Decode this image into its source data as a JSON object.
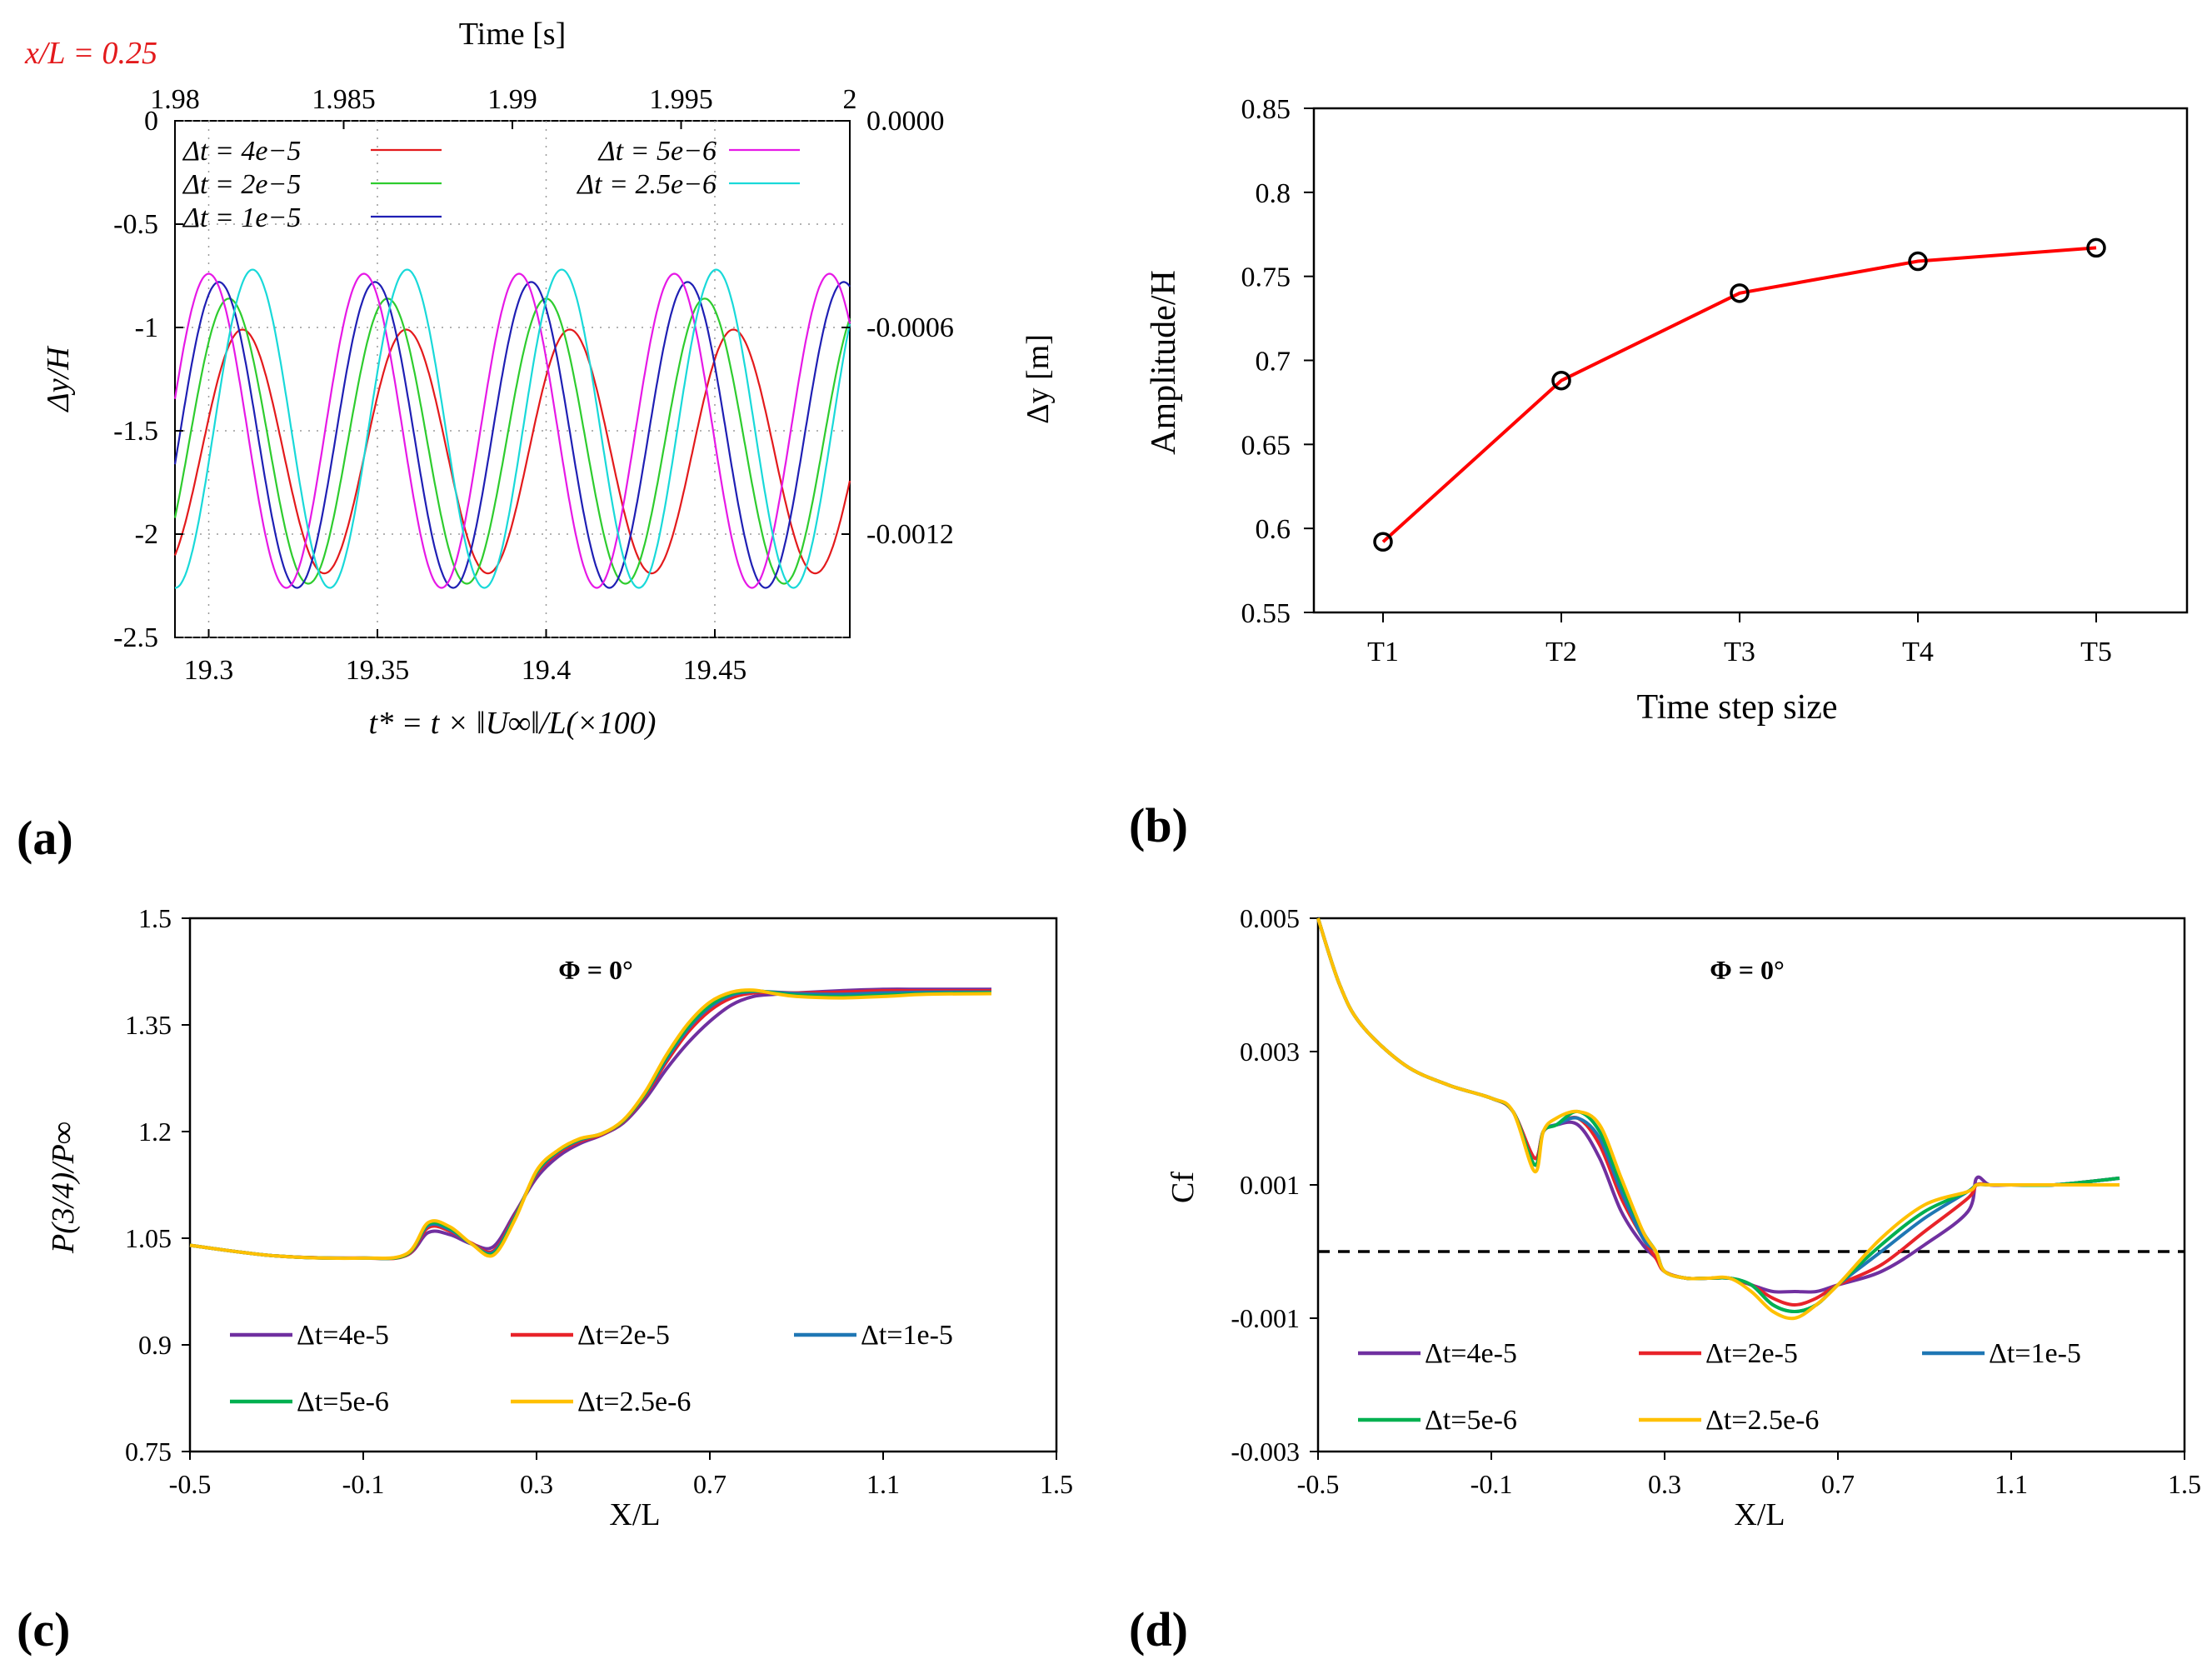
{
  "chart_data": [
    {
      "panel": "(a)",
      "type": "line",
      "annotation": "x/L = 0.25",
      "annotation_color": "#e31a1c",
      "top_axis_label": "Time [s]",
      "top_ticks": [
        "1.98",
        "1.985",
        "1.99",
        "1.995",
        "2"
      ],
      "xlabel": "t* = t × ‖U∞‖/L(×100)",
      "ylabel": "Δy/H",
      "right_ylabel": "Δy [m]",
      "right_ticks": [
        "0.0000",
        "-0.0006",
        "-0.0012"
      ],
      "xlim": [
        19.29,
        19.49
      ],
      "ylim": [
        -2.5,
        0
      ],
      "x_ticks": [
        "19.3",
        "19.35",
        "19.4",
        "19.45"
      ],
      "y_ticks": [
        "0",
        "-0.5",
        "-1",
        "-1.5",
        "-2",
        "-2.5"
      ],
      "series": [
        {
          "name": "Δt = 4e−5",
          "color": "#e31a1c",
          "period": 0.0485,
          "center": -1.6,
          "amplitude": 0.59,
          "phase_x": 19.31
        },
        {
          "name": "Δt = 2e−5",
          "color": "#2ecc2e",
          "period": 0.047,
          "center": -1.55,
          "amplitude": 0.69,
          "phase_x": 19.306
        },
        {
          "name": "Δt = 1e−5",
          "color": "#1f1fb4",
          "period": 0.0463,
          "center": -1.52,
          "amplitude": 0.74,
          "phase_x": 19.303
        },
        {
          "name": "Δt = 5e−6",
          "color": "#e619e6",
          "period": 0.046,
          "center": -1.5,
          "amplitude": 0.76,
          "phase_x": 19.3
        },
        {
          "name": "Δt = 2.5e−6",
          "color": "#19d9d9",
          "period": 0.0458,
          "center": -1.49,
          "amplitude": 0.77,
          "phase_x": 19.313
        }
      ]
    },
    {
      "panel": "(b)",
      "type": "line",
      "xlabel": "Time step size",
      "ylabel": "Amplitude/H",
      "categories": [
        "T1",
        "T2",
        "T3",
        "T4",
        "T5"
      ],
      "values": [
        0.592,
        0.688,
        0.74,
        0.759,
        0.767
      ],
      "ylim": [
        0.55,
        0.85
      ],
      "y_ticks": [
        "0.85",
        "0.8",
        "0.75",
        "0.7",
        "0.65",
        "0.6",
        "0.55"
      ],
      "color": "#ff0000"
    },
    {
      "panel": "(c)",
      "type": "line",
      "title": "Φ = 0°",
      "xlabel": "X/L",
      "ylabel": "P(3/4)/P∞",
      "xlim": [
        -0.5,
        1.5
      ],
      "ylim": [
        0.75,
        1.5
      ],
      "x_ticks": [
        "-0.5",
        "-0.1",
        "0.3",
        "0.7",
        "1.1",
        "1.5"
      ],
      "y_ticks": [
        "1.5",
        "1.35",
        "1.2",
        "1.05",
        "0.9",
        "0.75"
      ],
      "series": [
        {
          "name": "Δt=4e-5",
          "color": "#7030a0",
          "x": [
            -0.5,
            -0.3,
            -0.1,
            0.0,
            0.05,
            0.1,
            0.15,
            0.2,
            0.25,
            0.3,
            0.35,
            0.4,
            0.45,
            0.5,
            0.55,
            0.6,
            0.65,
            0.7,
            0.75,
            0.8,
            0.85,
            0.9,
            1.0,
            1.1,
            1.2,
            1.35
          ],
          "y": [
            1.04,
            1.025,
            1.022,
            1.026,
            1.058,
            1.055,
            1.042,
            1.038,
            1.085,
            1.135,
            1.165,
            1.183,
            1.195,
            1.212,
            1.245,
            1.288,
            1.325,
            1.355,
            1.378,
            1.39,
            1.393,
            1.395,
            1.398,
            1.4,
            1.4,
            1.4
          ]
        },
        {
          "name": "Δt=2e-5",
          "color": "#e8232a",
          "x": [
            -0.5,
            -0.3,
            -0.1,
            0.0,
            0.05,
            0.1,
            0.15,
            0.2,
            0.25,
            0.3,
            0.35,
            0.4,
            0.45,
            0.5,
            0.55,
            0.6,
            0.65,
            0.7,
            0.75,
            0.8,
            0.85,
            0.9,
            1.0,
            1.1,
            1.2,
            1.35
          ],
          "y": [
            1.04,
            1.025,
            1.022,
            1.026,
            1.065,
            1.06,
            1.043,
            1.032,
            1.082,
            1.14,
            1.17,
            1.186,
            1.196,
            1.214,
            1.25,
            1.298,
            1.34,
            1.37,
            1.388,
            1.395,
            1.396,
            1.395,
            1.396,
            1.398,
            1.398,
            1.398
          ]
        },
        {
          "name": "Δt=1e-5",
          "color": "#1f77b4",
          "x": [
            -0.5,
            -0.3,
            -0.1,
            0.0,
            0.05,
            0.1,
            0.15,
            0.2,
            0.25,
            0.3,
            0.35,
            0.4,
            0.45,
            0.5,
            0.55,
            0.6,
            0.65,
            0.7,
            0.75,
            0.8,
            0.85,
            0.9,
            1.0,
            1.1,
            1.2,
            1.35
          ],
          "y": [
            1.04,
            1.025,
            1.022,
            1.027,
            1.068,
            1.062,
            1.042,
            1.03,
            1.08,
            1.142,
            1.172,
            1.188,
            1.197,
            1.215,
            1.252,
            1.302,
            1.345,
            1.375,
            1.392,
            1.397,
            1.396,
            1.394,
            1.393,
            1.395,
            1.396,
            1.396
          ]
        },
        {
          "name": "Δt=5e-6",
          "color": "#00b050",
          "x": [
            -0.5,
            -0.3,
            -0.1,
            0.0,
            0.05,
            0.1,
            0.15,
            0.2,
            0.25,
            0.3,
            0.35,
            0.4,
            0.45,
            0.5,
            0.55,
            0.6,
            0.65,
            0.7,
            0.75,
            0.8,
            0.85,
            0.9,
            1.0,
            1.1,
            1.2,
            1.35
          ],
          "y": [
            1.04,
            1.025,
            1.022,
            1.027,
            1.07,
            1.064,
            1.042,
            1.028,
            1.078,
            1.143,
            1.173,
            1.189,
            1.197,
            1.215,
            1.253,
            1.305,
            1.348,
            1.378,
            1.394,
            1.398,
            1.395,
            1.392,
            1.39,
            1.392,
            1.394,
            1.395
          ]
        },
        {
          "name": "Δt=2.5e-6",
          "color": "#ffc000",
          "x": [
            -0.5,
            -0.3,
            -0.1,
            0.0,
            0.05,
            0.1,
            0.15,
            0.2,
            0.25,
            0.3,
            0.35,
            0.4,
            0.45,
            0.5,
            0.55,
            0.6,
            0.65,
            0.7,
            0.75,
            0.8,
            0.85,
            0.9,
            1.0,
            1.1,
            1.2,
            1.35
          ],
          "y": [
            1.04,
            1.025,
            1.022,
            1.028,
            1.072,
            1.066,
            1.042,
            1.026,
            1.076,
            1.145,
            1.174,
            1.19,
            1.197,
            1.216,
            1.255,
            1.308,
            1.352,
            1.382,
            1.396,
            1.399,
            1.394,
            1.39,
            1.388,
            1.39,
            1.393,
            1.394
          ]
        }
      ]
    },
    {
      "panel": "(d)",
      "type": "line",
      "title": "Φ = 0°",
      "xlabel": "X/L",
      "ylabel": "Cf",
      "xlim": [
        -0.5,
        1.5
      ],
      "ylim": [
        -0.003,
        0.005
      ],
      "x_ticks": [
        "-0.5",
        "-0.1",
        "0.3",
        "0.7",
        "1.1",
        "1.5"
      ],
      "y_ticks": [
        "0.005",
        "0.003",
        "0.001",
        "-0.001",
        "-0.003"
      ],
      "reference_line": 0,
      "series": [
        {
          "name": "Δt=4e-5",
          "color": "#7030a0",
          "x": [
            -0.5,
            -0.45,
            -0.4,
            -0.3,
            -0.2,
            -0.1,
            -0.05,
            0.0,
            0.02,
            0.05,
            0.1,
            0.15,
            0.2,
            0.25,
            0.28,
            0.3,
            0.35,
            0.4,
            0.45,
            0.5,
            0.55,
            0.6,
            0.65,
            0.7,
            0.8,
            0.9,
            1.0,
            1.02,
            1.05,
            1.1,
            1.2,
            1.35
          ],
          "y": [
            0.005,
            0.004,
            0.0034,
            0.0028,
            0.0025,
            0.0023,
            0.0021,
            0.0014,
            0.0018,
            0.0019,
            0.0019,
            0.0014,
            0.0006,
            0.0001,
            -0.0001,
            -0.0003,
            -0.0004,
            -0.0004,
            -0.0004,
            -0.0005,
            -0.0006,
            -0.0006,
            -0.0006,
            -0.0005,
            -0.0003,
            0.0001,
            0.0006,
            0.0011,
            0.001,
            0.001,
            0.001,
            0.0011
          ]
        },
        {
          "name": "Δt=2e-5",
          "color": "#e8232a",
          "x": [
            -0.5,
            -0.45,
            -0.4,
            -0.3,
            -0.2,
            -0.1,
            -0.05,
            0.0,
            0.02,
            0.05,
            0.1,
            0.15,
            0.2,
            0.25,
            0.28,
            0.3,
            0.35,
            0.4,
            0.45,
            0.5,
            0.55,
            0.6,
            0.65,
            0.7,
            0.8,
            0.9,
            1.0,
            1.02,
            1.05,
            1.1,
            1.2,
            1.35
          ],
          "y": [
            0.005,
            0.004,
            0.0034,
            0.0028,
            0.0025,
            0.0023,
            0.0021,
            0.0014,
            0.0018,
            0.0019,
            0.002,
            0.0016,
            0.0008,
            0.0002,
            -0.0001,
            -0.0003,
            -0.0004,
            -0.0004,
            -0.0004,
            -0.0005,
            -0.0007,
            -0.0008,
            -0.0007,
            -0.0005,
            -0.0002,
            0.0003,
            0.0008,
            0.001,
            0.001,
            0.001,
            0.001,
            0.0011
          ]
        },
        {
          "name": "Δt=1e-5",
          "color": "#1f77b4",
          "x": [
            -0.5,
            -0.45,
            -0.4,
            -0.3,
            -0.2,
            -0.1,
            -0.05,
            0.0,
            0.02,
            0.05,
            0.1,
            0.15,
            0.2,
            0.25,
            0.28,
            0.3,
            0.35,
            0.4,
            0.45,
            0.5,
            0.55,
            0.6,
            0.65,
            0.7,
            0.8,
            0.9,
            1.0,
            1.02,
            1.05,
            1.1,
            1.2,
            1.35
          ],
          "y": [
            0.005,
            0.004,
            0.0034,
            0.0028,
            0.0025,
            0.0023,
            0.0021,
            0.0013,
            0.0018,
            0.0019,
            0.002,
            0.0017,
            0.0009,
            0.0002,
            0.0,
            -0.0003,
            -0.0004,
            -0.0004,
            -0.0004,
            -0.0005,
            -0.0008,
            -0.0009,
            -0.0008,
            -0.0005,
            0.0,
            0.0005,
            0.0009,
            0.001,
            0.001,
            0.001,
            0.001,
            0.0011
          ]
        },
        {
          "name": "Δt=5e-6",
          "color": "#00b050",
          "x": [
            -0.5,
            -0.45,
            -0.4,
            -0.3,
            -0.2,
            -0.1,
            -0.05,
            0.0,
            0.02,
            0.05,
            0.1,
            0.15,
            0.2,
            0.25,
            0.28,
            0.3,
            0.35,
            0.4,
            0.45,
            0.5,
            0.55,
            0.6,
            0.65,
            0.7,
            0.8,
            0.9,
            1.0,
            1.02,
            1.05,
            1.1,
            1.2,
            1.35
          ],
          "y": [
            0.005,
            0.004,
            0.0034,
            0.0028,
            0.0025,
            0.0023,
            0.0021,
            0.0013,
            0.0018,
            0.0019,
            0.0021,
            0.0018,
            0.001,
            0.0003,
            0.0,
            -0.0003,
            -0.0004,
            -0.0004,
            -0.0004,
            -0.0005,
            -0.0008,
            -0.0009,
            -0.0008,
            -0.0005,
            0.0001,
            0.0006,
            0.0009,
            0.001,
            0.001,
            0.001,
            0.001,
            0.0011
          ]
        },
        {
          "name": "Δt=2.5e-6",
          "color": "#ffc000",
          "x": [
            -0.5,
            -0.45,
            -0.4,
            -0.3,
            -0.2,
            -0.1,
            -0.05,
            0.0,
            0.02,
            0.05,
            0.1,
            0.15,
            0.2,
            0.25,
            0.28,
            0.3,
            0.35,
            0.4,
            0.45,
            0.5,
            0.55,
            0.6,
            0.65,
            0.7,
            0.8,
            0.9,
            1.0,
            1.02,
            1.05,
            1.1,
            1.2,
            1.35
          ],
          "y": [
            0.005,
            0.004,
            0.0034,
            0.0028,
            0.0025,
            0.0023,
            0.0021,
            0.0012,
            0.0018,
            0.002,
            0.0021,
            0.0019,
            0.0011,
            0.0003,
            0.0,
            -0.0003,
            -0.0004,
            -0.0004,
            -0.0004,
            -0.0006,
            -0.0009,
            -0.001,
            -0.0008,
            -0.0005,
            0.0002,
            0.0007,
            0.0009,
            0.001,
            0.001,
            0.001,
            0.001,
            0.001
          ]
        }
      ]
    }
  ]
}
